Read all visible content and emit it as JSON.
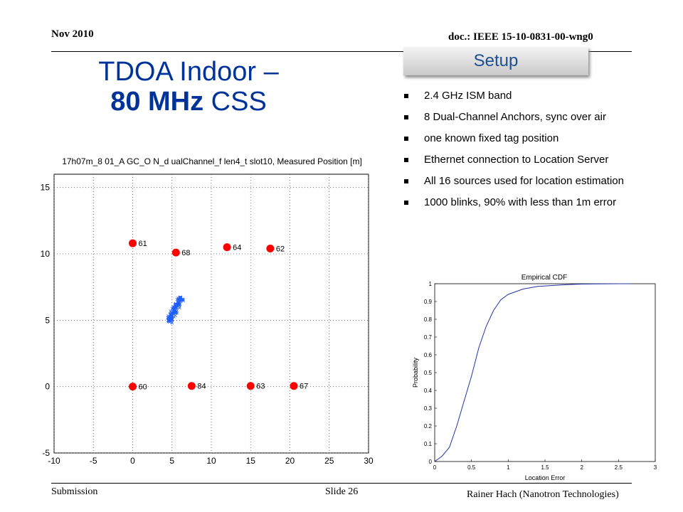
{
  "header": {
    "date": "Nov 2010",
    "doc": "doc.: IEEE 15-10-0831-00-wng0"
  },
  "title": {
    "line1": "TDOA Indoor –",
    "line2_bold": "80 MHz",
    "line2_rest": " CSS"
  },
  "setup": {
    "label": "Setup",
    "bullets": [
      "2.4 GHz ISM band",
      "8 Dual-Channel Anchors, sync over air",
      "one known fixed tag position",
      "Ethernet connection to Location Server",
      "All 16 sources used for location estimation",
      "1000 blinks, 90% with less than 1m error"
    ]
  },
  "footer": {
    "submission": "Submission",
    "slide": "Slide 26",
    "author": "Rainer Hach (Nanotron Technologies)"
  },
  "chart_data": [
    {
      "type": "scatter",
      "title": "17h07m_8 01_A GC_O N_d ualChannel_f len4_t slot10, Measured Position [m]",
      "xlabel": "",
      "ylabel": "",
      "xlim": [
        -10,
        30
      ],
      "ylim": [
        -5,
        16
      ],
      "xticks": [
        "-10",
        "-5",
        "0",
        "5",
        "10",
        "15",
        "20",
        "25",
        "30"
      ],
      "yticks": [
        "-5",
        "0",
        "5",
        "10",
        "15"
      ],
      "grid": true,
      "anchors": [
        {
          "label": "61",
          "x": 0,
          "y": 10.8
        },
        {
          "label": "68",
          "x": 5.5,
          "y": 10.1
        },
        {
          "label": "64",
          "x": 12,
          "y": 10.5
        },
        {
          "label": "62",
          "x": 17.5,
          "y": 10.4
        },
        {
          "label": "60",
          "x": 0,
          "y": 0
        },
        {
          "label": "84",
          "x": 7.5,
          "y": 0.05
        },
        {
          "label": "63",
          "x": 15,
          "y": 0.05
        },
        {
          "label": "67",
          "x": 20.5,
          "y": 0.05
        }
      ],
      "measured_cluster": {
        "center_x": 5.4,
        "center_y": 5.8,
        "count": 1000,
        "colors": {
          "anchor": "#ff0000",
          "measured": "#1f5fff"
        }
      }
    },
    {
      "type": "line",
      "title": "Empirical CDF",
      "xlabel": "Location Error",
      "ylabel": "Probability",
      "xlim": [
        0,
        3
      ],
      "ylim": [
        0,
        1
      ],
      "xticks": [
        "0",
        "0.5",
        "1",
        "1.5",
        "2",
        "2.5",
        "3"
      ],
      "yticks": [
        "0",
        "0.1",
        "0.2",
        "0.3",
        "0.4",
        "0.5",
        "0.6",
        "0.7",
        "0.8",
        "0.9",
        "1"
      ],
      "series": [
        {
          "color": "#2233aa",
          "x": [
            0.0,
            0.1,
            0.2,
            0.3,
            0.4,
            0.5,
            0.6,
            0.7,
            0.8,
            0.9,
            1.0,
            1.2,
            1.4,
            1.6,
            1.8,
            2.0,
            2.2,
            2.5,
            2.65
          ],
          "y": [
            0.0,
            0.03,
            0.08,
            0.2,
            0.34,
            0.48,
            0.64,
            0.76,
            0.85,
            0.91,
            0.94,
            0.97,
            0.985,
            0.99,
            0.995,
            0.998,
            0.999,
            1.0,
            1.0
          ]
        }
      ]
    }
  ]
}
